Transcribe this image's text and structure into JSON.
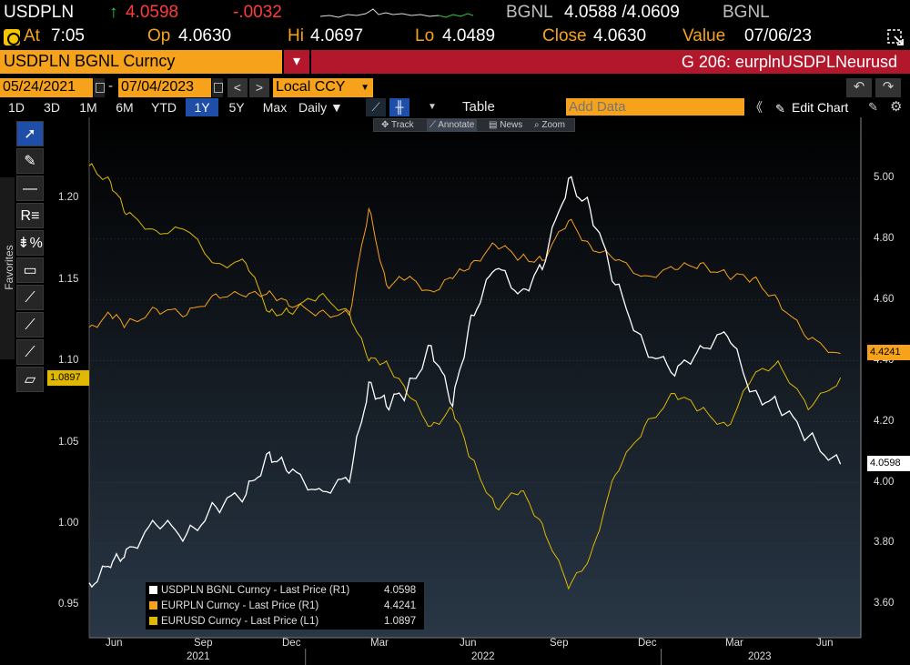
{
  "ticker": {
    "symbol": "USDPLN",
    "arrow": "↑",
    "last": "4.0598",
    "change": "-.0032",
    "source": "BGNL",
    "bid_ask": "4.0588 /4.0609",
    "source2": "BGNL"
  },
  "stats": {
    "at_label": "At",
    "at_value": "7:05",
    "op_label": "Op",
    "op_value": "4.0630",
    "hi_label": "Hi",
    "hi_value": "4.0697",
    "lo_label": "Lo",
    "lo_value": "4.0489",
    "close_label": "Close",
    "close_value": "4.0630",
    "value_label": "Value",
    "value_value": "07/06/23"
  },
  "titlebar": {
    "security": "USDPLN BGNL Curncy",
    "dropdown": "▾",
    "graph_title": "G 206: eurplnUSDPLNeurusd"
  },
  "dates": {
    "start": "05/24/2021",
    "dash": "-",
    "end": "07/04/2023",
    "prev": "<",
    "next": ">",
    "currency": "Local CCY",
    "undo": "↶",
    "redo": "↷"
  },
  "toolbar": {
    "periods": [
      "1D",
      "3D",
      "1M",
      "6M",
      "YTD",
      "1Y",
      "5Y",
      "Max"
    ],
    "selected_period": "1Y",
    "frequency": "Daily ▼",
    "table": "Table",
    "add_data_placeholder": "Add Data",
    "prev": "《",
    "edit_chart": "Edit Chart"
  },
  "mini_tools": [
    "Track",
    "Annotate",
    "News",
    "Zoom"
  ],
  "palette": {
    "favorites": "Favorites",
    "tools": [
      "pointer-icon",
      "pencil-icon",
      "horizontal-line-icon",
      "text-icon",
      "percent-icon",
      "rectangle-icon",
      "trendline-icon",
      "channel-icon",
      "fib-icon",
      "eraser-icon"
    ],
    "tool_glyphs": [
      "➚",
      "✎",
      "―",
      "R≡",
      "⇟%",
      "▭",
      "⟋",
      "⟋",
      "⟋",
      "▱"
    ]
  },
  "axes": {
    "left_ticks": [
      "1.20",
      "1.15",
      "1.10",
      "1.05",
      "1.00",
      "0.95"
    ],
    "right_ticks": [
      "5.00",
      "4.80",
      "4.60",
      "4.40",
      "4.20",
      "4.00",
      "3.80",
      "3.60"
    ],
    "x_months": [
      "Jun",
      "Sep",
      "Dec",
      "Mar",
      "Jun",
      "Sep",
      "Dec",
      "Mar",
      "Jun"
    ],
    "x_years": [
      "2021",
      "2022",
      "2023"
    ]
  },
  "tags": {
    "eurusd": "1.0897",
    "eurpln": "4.4241",
    "usdpln": "4.0598"
  },
  "legend": [
    {
      "label": "USDPLN BGNL Curncy - Last Price (R1)",
      "value": "4.0598",
      "color": "#ffffff"
    },
    {
      "label": "EURPLN Curncy - Last Price (R1)",
      "value": "4.4241",
      "color": "#f7a21b"
    },
    {
      "label": "EURUSD Curncy - Last Price (L1)",
      "value": "1.0897",
      "color": "#e0b800"
    }
  ],
  "colors": {
    "bbg_orange": "#f7a21b",
    "bbg_red": "#b3172c",
    "usdpln": "#ffffff",
    "eurpln": "#f7a21b",
    "eurusd": "#e0b800"
  },
  "chart_data": {
    "type": "line",
    "title": "",
    "x": [
      "2021-05-24",
      "2021-06-15",
      "2021-07-01",
      "2021-08-01",
      "2021-09-01",
      "2021-10-01",
      "2021-11-01",
      "2021-11-25",
      "2021-12-15",
      "2022-01-15",
      "2022-02-15",
      "2022-03-07",
      "2022-03-25",
      "2022-04-15",
      "2022-05-10",
      "2022-06-01",
      "2022-06-20",
      "2022-07-15",
      "2022-08-10",
      "2022-09-01",
      "2022-09-28",
      "2022-10-20",
      "2022-11-15",
      "2022-12-15",
      "2023-01-15",
      "2023-02-10",
      "2023-03-10",
      "2023-04-05",
      "2023-05-01",
      "2023-06-01",
      "2023-07-04"
    ],
    "series": [
      {
        "name": "USDPLN BGNL Curncy - Last Price (R1)",
        "axis": "right",
        "values": [
          3.67,
          3.72,
          3.78,
          3.86,
          3.83,
          3.92,
          3.96,
          4.1,
          4.03,
          3.98,
          4.0,
          4.33,
          4.25,
          4.3,
          4.45,
          4.25,
          4.55,
          4.7,
          4.63,
          4.7,
          5.0,
          4.9,
          4.65,
          4.45,
          4.35,
          4.45,
          4.48,
          4.3,
          4.25,
          4.15,
          4.06
        ]
      },
      {
        "name": "EURPLN Curncy - Last Price (R1)",
        "axis": "right",
        "values": [
          4.51,
          4.55,
          4.52,
          4.57,
          4.55,
          4.62,
          4.61,
          4.63,
          4.58,
          4.56,
          4.55,
          4.9,
          4.65,
          4.67,
          4.63,
          4.67,
          4.72,
          4.78,
          4.74,
          4.73,
          4.86,
          4.78,
          4.73,
          4.68,
          4.7,
          4.72,
          4.68,
          4.67,
          4.6,
          4.47,
          4.4241
        ]
      },
      {
        "name": "EURUSD Curncy - Last Price (L1)",
        "axis": "left",
        "values": [
          1.22,
          1.21,
          1.19,
          1.18,
          1.18,
          1.16,
          1.16,
          1.13,
          1.13,
          1.14,
          1.13,
          1.1,
          1.1,
          1.08,
          1.06,
          1.07,
          1.04,
          1.01,
          1.02,
          1.0,
          0.96,
          0.98,
          1.03,
          1.06,
          1.08,
          1.07,
          1.06,
          1.09,
          1.1,
          1.07,
          1.0897
        ]
      }
    ],
    "left_ylim": [
      0.95,
      1.22
    ],
    "right_ylim": [
      3.6,
      5.0
    ],
    "legend_position": "bottom-left",
    "grid": true
  }
}
